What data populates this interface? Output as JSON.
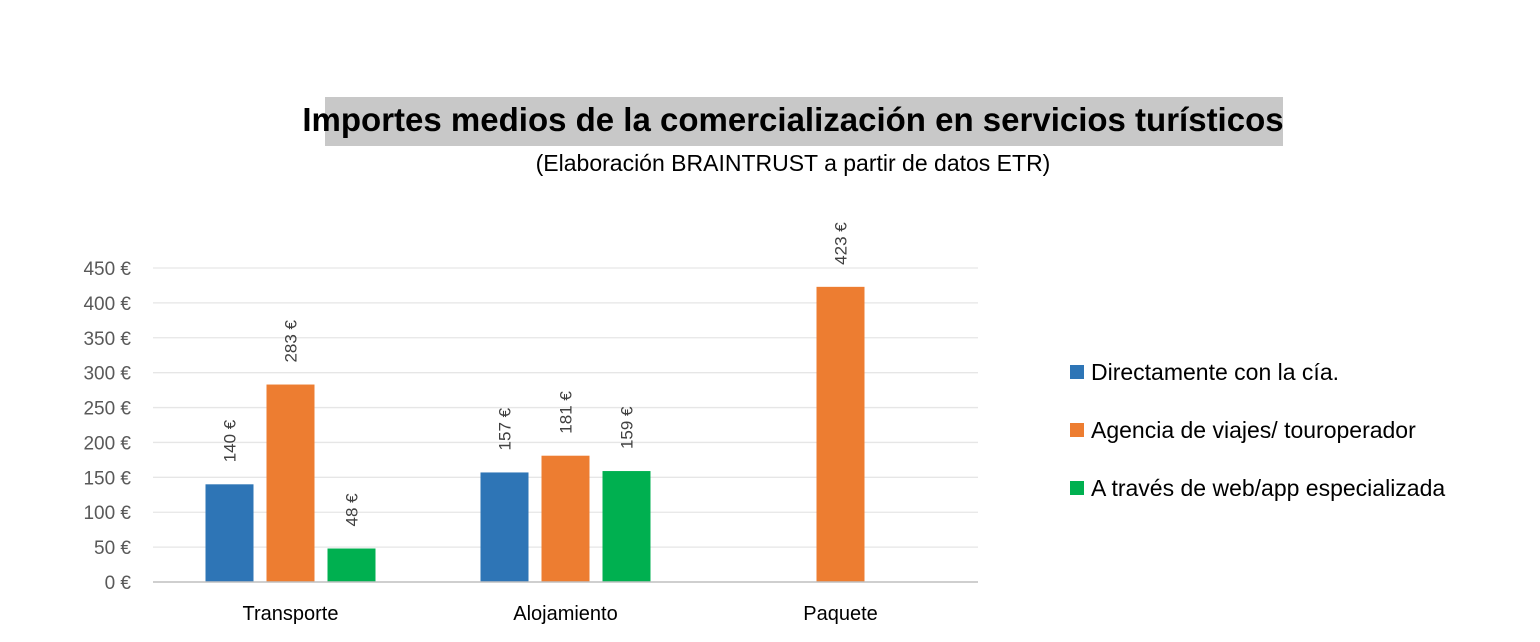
{
  "chart_data": {
    "type": "bar",
    "title": "Importes medios de la comercialización en servicios turísticos",
    "subtitle": "(Elaboración BRAINTRUST a partir de datos ETR)",
    "categories": [
      "Transporte",
      "Alojamiento",
      "Paquete"
    ],
    "series": [
      {
        "name": "Directamente con la cía.",
        "color": "#2e75b6",
        "values": [
          140,
          157,
          null
        ],
        "labels": [
          "140 €",
          "157 €",
          ""
        ]
      },
      {
        "name": "Agencia de viajes/ touroperador",
        "color": "#ed7d31",
        "values": [
          283,
          181,
          423
        ],
        "labels": [
          "283 €",
          "181 €",
          "423 €"
        ]
      },
      {
        "name": "A través de web/app especializada",
        "color": "#00b050",
        "values": [
          48,
          159,
          null
        ],
        "labels": [
          "48 €",
          "159 €",
          ""
        ]
      }
    ],
    "ylim": [
      0,
      450
    ],
    "yticks": [
      0,
      50,
      100,
      150,
      200,
      250,
      300,
      350,
      400,
      450
    ],
    "ytick_labels": [
      "0 €",
      "50 €",
      "100 €",
      "150 €",
      "200 €",
      "250 €",
      "300 €",
      "350 €",
      "400 €",
      "450 €"
    ],
    "grid": true,
    "legend_position": "right",
    "title_background": "#c8c8c8"
  }
}
